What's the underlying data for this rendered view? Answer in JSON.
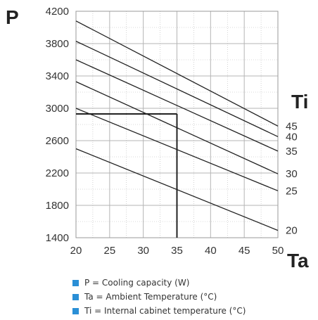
{
  "chart_data": {
    "type": "line",
    "x_letter": "Ta",
    "y_letter": "P",
    "series_letter": "Ti",
    "xlim": [
      20,
      50
    ],
    "ylim": [
      1400,
      4200
    ],
    "x_ticks": [
      20,
      25,
      30,
      35,
      40,
      45,
      50
    ],
    "y_ticks": [
      1400,
      1800,
      2200,
      2600,
      3000,
      3400,
      3800,
      4200
    ],
    "grid": true,
    "series": [
      {
        "name": "20",
        "points": [
          [
            20,
            2500
          ],
          [
            50,
            1490
          ]
        ]
      },
      {
        "name": "25",
        "points": [
          [
            20,
            3000
          ],
          [
            50,
            1980
          ]
        ]
      },
      {
        "name": "30",
        "points": [
          [
            20,
            3330
          ],
          [
            50,
            2190
          ]
        ]
      },
      {
        "name": "35",
        "points": [
          [
            20,
            3600
          ],
          [
            50,
            2470
          ]
        ]
      },
      {
        "name": "40",
        "points": [
          [
            20,
            3830
          ],
          [
            50,
            2650
          ]
        ]
      },
      {
        "name": "45",
        "points": [
          [
            20,
            4080
          ],
          [
            50,
            2780
          ]
        ]
      }
    ],
    "annotation": {
      "x": 35,
      "y": 2930
    },
    "colors": {
      "line": "#222222",
      "grid": "#b5b5b5",
      "legend_marker": "#2a8fd6"
    }
  },
  "legend": [
    "P = Cooling capacity (W)",
    "Ta = Ambient Temperature (°C)",
    "Ti = Internal cabinet temperature (°C)"
  ]
}
